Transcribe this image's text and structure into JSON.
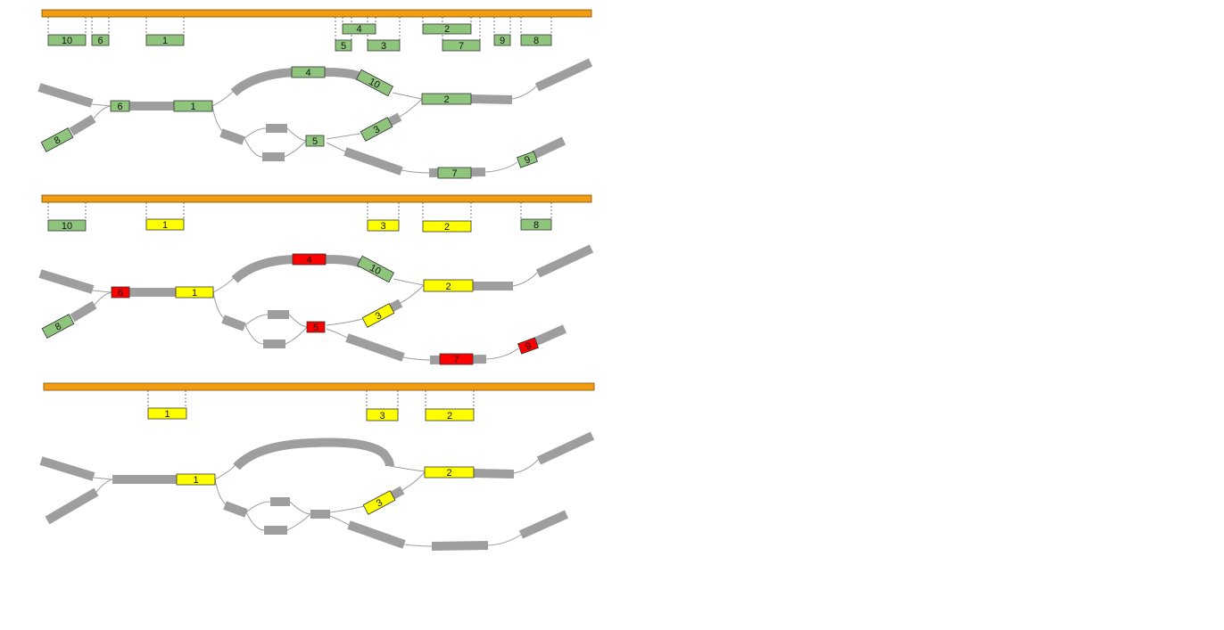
{
  "colors": {
    "bar": "#f39c12",
    "track": "#9e9e9e",
    "green": "#8fc47d",
    "yellow": "#ffff00",
    "red": "#ff0000",
    "outline": "#333333"
  },
  "panels": [
    {
      "name": "panel-1",
      "ruler_labels": [
        "10",
        "6",
        "1",
        "4",
        "5",
        "3",
        "2",
        "7",
        "9",
        "8"
      ],
      "track_labels": [
        "6",
        "1",
        "4",
        "10",
        "2",
        "8",
        "5",
        "3",
        "7",
        "9"
      ],
      "states": {
        "1": "green",
        "2": "green",
        "3": "green",
        "4": "green",
        "5": "green",
        "6": "green",
        "7": "green",
        "8": "green",
        "9": "green",
        "10": "green"
      }
    },
    {
      "name": "panel-2",
      "ruler_labels": [
        "10",
        "1",
        "3",
        "2",
        "8"
      ],
      "track_labels": [
        "6",
        "1",
        "4",
        "10",
        "2",
        "8",
        "5",
        "3",
        "7",
        "9"
      ],
      "states": {
        "1": "yellow",
        "2": "yellow",
        "3": "yellow",
        "4": "red",
        "5": "red",
        "6": "red",
        "7": "red",
        "8": "green",
        "9": "red",
        "10": "green"
      }
    },
    {
      "name": "panel-3",
      "ruler_labels": [
        "1",
        "3",
        "2"
      ],
      "track_labels": [
        "1",
        "2",
        "3"
      ],
      "states": {
        "1": "yellow",
        "2": "yellow",
        "3": "yellow"
      }
    }
  ]
}
